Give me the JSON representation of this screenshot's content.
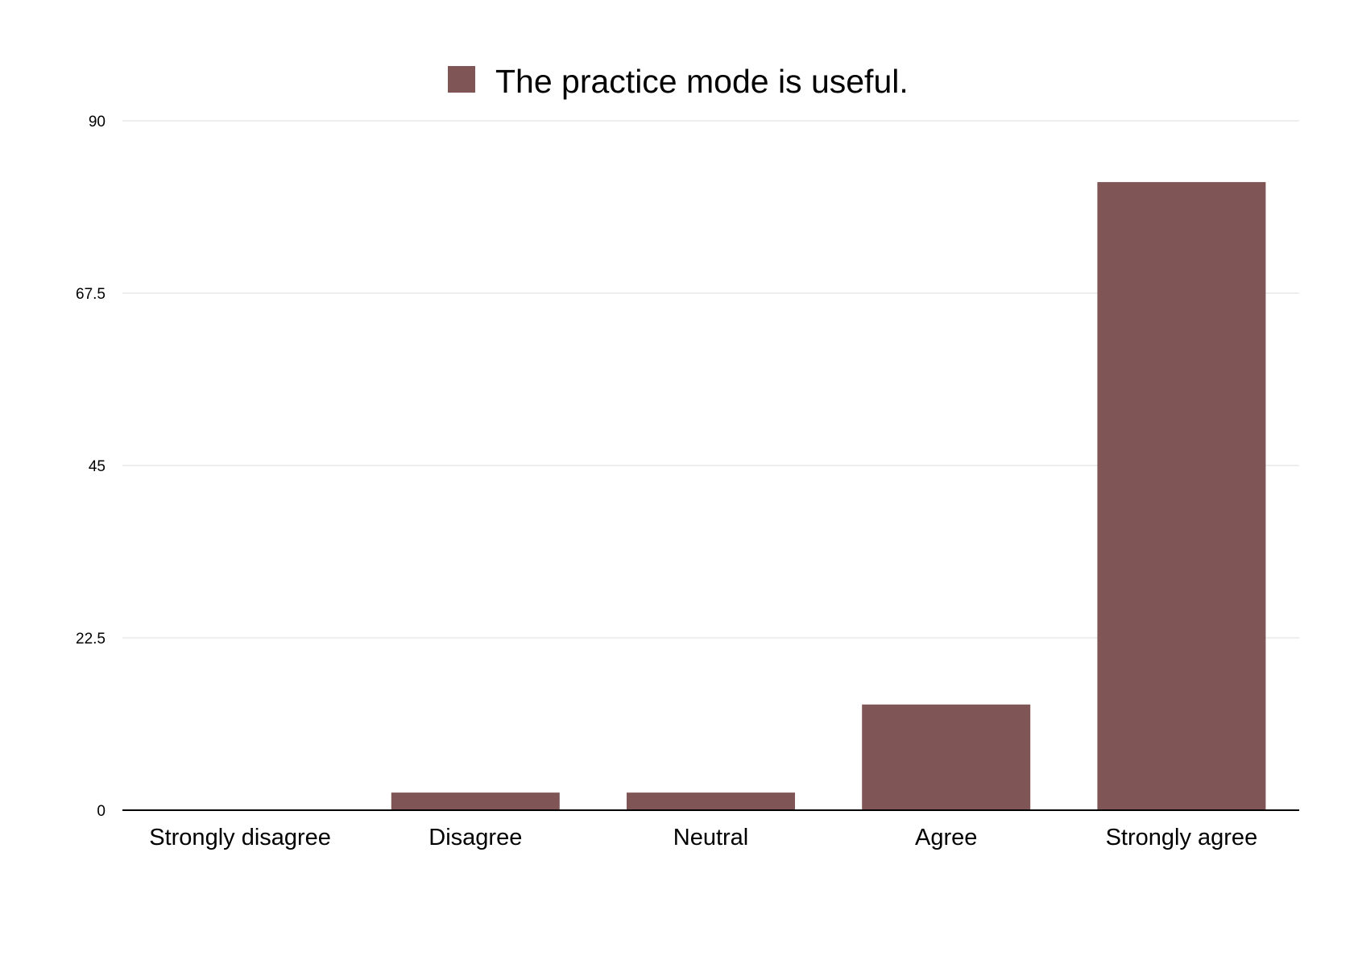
{
  "chart_data": {
    "type": "bar",
    "categories": [
      "Strongly disagree",
      "Disagree",
      "Neutral",
      "Agree",
      "Strongly agree"
    ],
    "series": [
      {
        "name": "The practice mode is useful.",
        "values": [
          0,
          2.3,
          2.3,
          13.8,
          82
        ],
        "color": "#7f5555"
      }
    ],
    "ylim": [
      0,
      90
    ],
    "yticks": [
      0,
      22.5,
      45,
      67.5,
      90
    ],
    "ytick_labels": [
      "0",
      "22.5",
      "45",
      "67.5",
      "90"
    ],
    "grid": true,
    "legend_position": "top-center",
    "gridline_color": "#e3e3e3",
    "axis_color": "#000000"
  }
}
